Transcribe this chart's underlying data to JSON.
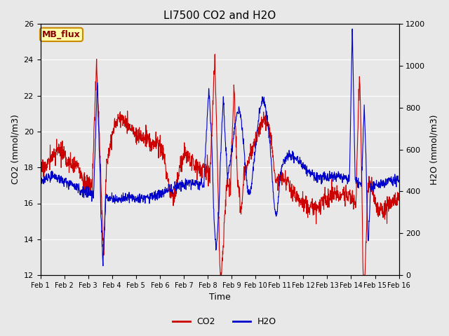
{
  "title": "LI7500 CO2 and H2O",
  "xlabel": "Time",
  "ylabel_left": "CO2 (mmol/m3)",
  "ylabel_right": "H2O (mmol/m3)",
  "ylim_left": [
    12,
    26
  ],
  "ylim_right": [
    0,
    1200
  ],
  "yticks_left": [
    12,
    14,
    16,
    18,
    20,
    22,
    24,
    26
  ],
  "yticks_right": [
    0,
    200,
    400,
    600,
    800,
    1000,
    1200
  ],
  "xtick_labels": [
    "Feb 1",
    "Feb 2",
    "Feb 3",
    "Feb 4",
    "Feb 5",
    "Feb 6",
    "Feb 7",
    "Feb 8",
    "Feb 9",
    "Feb 10",
    "Feb 11",
    "Feb 12",
    "Feb 13",
    "Feb 14",
    "Feb 15",
    "Feb 16"
  ],
  "co2_color": "#CC0000",
  "h2o_color": "#0000CC",
  "bg_color": "#E8E8E8",
  "plot_bg_color": "#E8E8E8",
  "legend_label_co2": "CO2",
  "legend_label_h2o": "H2O",
  "tag_text": "MB_flux",
  "tag_facecolor": "#FFFFAA",
  "tag_edgecolor": "#CC8800",
  "tag_textcolor": "#880000",
  "grid_color": "#FFFFFF",
  "linewidth": 0.8,
  "n_days": 15,
  "pts_per_day": 100
}
